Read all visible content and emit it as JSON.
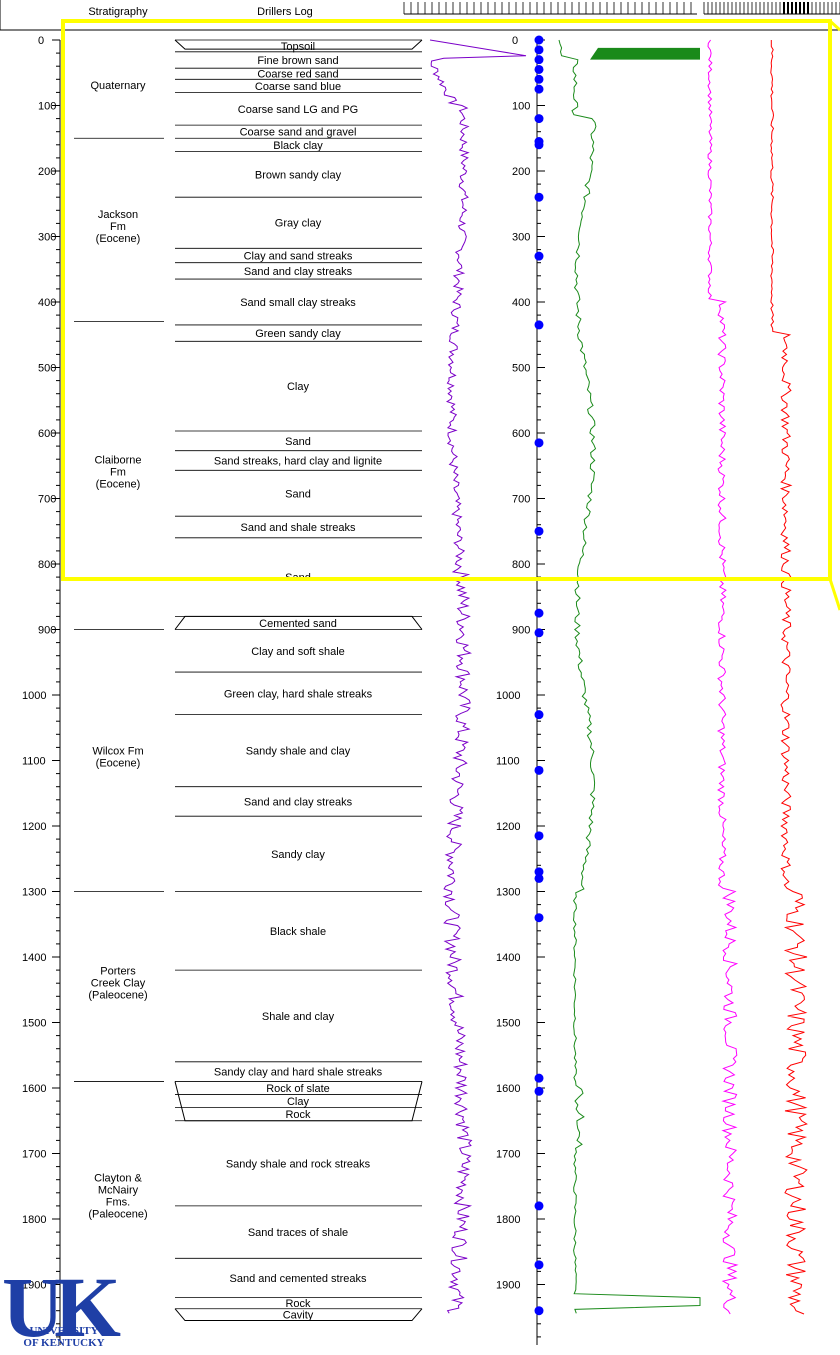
{
  "headers": {
    "stratigraphy": "Stratigraphy",
    "drillers_log": "Drillers Log"
  },
  "logo": {
    "top": "UK",
    "line1": "UNIVERSITY",
    "line2": "OF KENTUCKY"
  },
  "highlight_color": "#ffff00",
  "chart_data": {
    "type": "line",
    "depth_ticks": [
      0,
      100,
      200,
      300,
      400,
      500,
      600,
      700,
      800,
      900,
      1000,
      1100,
      1200,
      1300,
      1400,
      1500,
      1600,
      1700,
      1800,
      1900
    ],
    "ylim": [
      0,
      2000
    ],
    "formations": [
      {
        "name": "Quaternary",
        "top": 0,
        "base": 150
      },
      {
        "name": "Jackson\nFm\n(Eocene)",
        "top": 150,
        "base": 430
      },
      {
        "name": "Claiborne\nFm\n(Eocene)",
        "top": 430,
        "base": 900
      },
      {
        "name": "Wilcox Fm\n(Eocene)",
        "top": 900,
        "base": 1300
      },
      {
        "name": "Porters\nCreek Clay\n(Paleocene)",
        "top": 1300,
        "base": 1590
      },
      {
        "name": "Clayton &\nMcNairy\nFms.\n(Paleocene)",
        "top": 1590,
        "base": 1950
      }
    ],
    "log_units": [
      {
        "label": "Topsoil",
        "top": 0,
        "base": 18
      },
      {
        "label": "Fine brown sand",
        "top": 18,
        "base": 43
      },
      {
        "label": "Coarse red sand",
        "top": 43,
        "base": 60
      },
      {
        "label": "Coarse sand blue",
        "top": 60,
        "base": 80
      },
      {
        "label": "Coarse sand LG and PG",
        "top": 80,
        "base": 130
      },
      {
        "label": "Coarse sand and gravel",
        "top": 130,
        "base": 150
      },
      {
        "label": "Black clay",
        "top": 150,
        "base": 170
      },
      {
        "label": "Brown sandy clay",
        "top": 170,
        "base": 240
      },
      {
        "label": "Gray clay",
        "top": 240,
        "base": 318
      },
      {
        "label": "Clay and sand streaks",
        "top": 318,
        "base": 340
      },
      {
        "label": "Sand and clay streaks",
        "top": 340,
        "base": 365
      },
      {
        "label": "Sand small clay streaks",
        "top": 365,
        "base": 435
      },
      {
        "label": "Green sandy clay",
        "top": 435,
        "base": 460
      },
      {
        "label": "Clay",
        "top": 460,
        "base": 597
      },
      {
        "label": "Sand",
        "top": 597,
        "base": 627
      },
      {
        "label": "Sand streaks, hard clay and lignite",
        "top": 627,
        "base": 657
      },
      {
        "label": "Sand",
        "top": 657,
        "base": 727
      },
      {
        "label": "Sand and shale streaks",
        "top": 727,
        "base": 760
      },
      {
        "label": "Sand",
        "top": 760,
        "base": 880
      },
      {
        "label": "Cemented sand",
        "top": 880,
        "base": 900
      },
      {
        "label": "Clay and soft shale",
        "top": 900,
        "base": 965
      },
      {
        "label": "Green clay, hard shale streaks",
        "top": 965,
        "base": 1030
      },
      {
        "label": "Sandy shale and clay",
        "top": 1030,
        "base": 1140
      },
      {
        "label": "Sand and clay streaks",
        "top": 1140,
        "base": 1185
      },
      {
        "label": "Sandy clay",
        "top": 1185,
        "base": 1300
      },
      {
        "label": "Black shale",
        "top": 1300,
        "base": 1420
      },
      {
        "label": "Shale and clay",
        "top": 1420,
        "base": 1560
      },
      {
        "label": "Sandy clay and hard shale streaks",
        "top": 1560,
        "base": 1590
      },
      {
        "label": "Rock of slate",
        "top": 1590,
        "base": 1610
      },
      {
        "label": "Clay",
        "top": 1610,
        "base": 1630
      },
      {
        "label": "Rock",
        "top": 1630,
        "base": 1650
      },
      {
        "label": "Sandy shale and rock streaks",
        "top": 1650,
        "base": 1780
      },
      {
        "label": "Sand traces of shale",
        "top": 1780,
        "base": 1860
      },
      {
        "label": "Sand and cemented streaks",
        "top": 1860,
        "base": 1920
      },
      {
        "label": "Rock",
        "top": 1920,
        "base": 1937
      },
      {
        "label": "Cavity",
        "top": 1937,
        "base": 1955
      }
    ],
    "sample_depths": [
      0,
      15,
      30,
      45,
      60,
      75,
      120,
      155,
      160,
      240,
      330,
      435,
      615,
      750,
      875,
      905,
      1030,
      1115,
      1215,
      1270,
      1280,
      1340,
      1585,
      1605,
      1780,
      1870,
      1940
    ],
    "series": [
      {
        "color": "#7b00c8"
      },
      {
        "color": "#1a8a1a"
      },
      {
        "color": "#ff00ff"
      },
      {
        "color": "#ff0000"
      }
    ]
  }
}
